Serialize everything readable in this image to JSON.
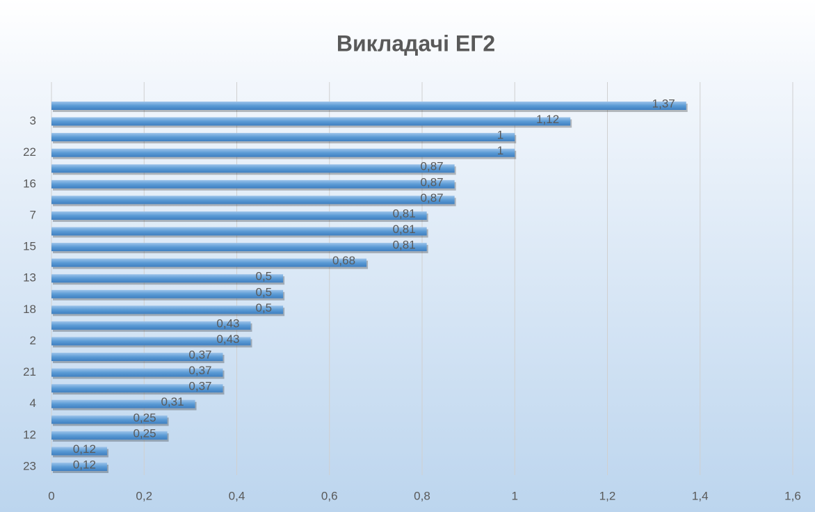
{
  "chart_data": {
    "type": "bar",
    "orientation": "horizontal",
    "title": "Викладачі ЕГ2",
    "categories": [
      null,
      "3",
      null,
      "22",
      null,
      "16",
      null,
      "7",
      null,
      "15",
      null,
      "13",
      null,
      "18",
      null,
      "2",
      null,
      "21",
      null,
      "4",
      null,
      "12",
      null,
      "23"
    ],
    "values": [
      1.37,
      1.12,
      1,
      1,
      0.87,
      0.87,
      0.87,
      0.81,
      0.81,
      0.81,
      0.68,
      0.5,
      0.5,
      0.5,
      0.43,
      0.43,
      0.37,
      0.37,
      0.37,
      0.31,
      0.25,
      0.25,
      0.12,
      0.12
    ],
    "value_labels": [
      "1,37",
      "1,12",
      "1",
      "1",
      "0,87",
      "0,87",
      "0,87",
      "0,81",
      "0,81",
      "0,81",
      "0,68",
      "0,5",
      "0,5",
      "0,5",
      "0,43",
      "0,43",
      "0,37",
      "0,37",
      "0,37",
      "0,31",
      "0,25",
      "0,25",
      "0,12",
      "0,12"
    ],
    "color": "#5b9bd5",
    "xlim": [
      0,
      1.6
    ],
    "xticks": [
      0,
      {
        "value": 0.2,
        "label": "0,2"
      },
      {
        "value": 0.4,
        "label": "0,4"
      },
      {
        "value": 0.6,
        "label": "0,6"
      },
      {
        "value": 0.8,
        "label": "0,8"
      },
      1,
      {
        "value": 1.2,
        "label": "1,2"
      },
      {
        "value": 1.4,
        "label": "1,4"
      },
      {
        "value": 1.6,
        "label": "1,6"
      }
    ],
    "grid": true
  }
}
